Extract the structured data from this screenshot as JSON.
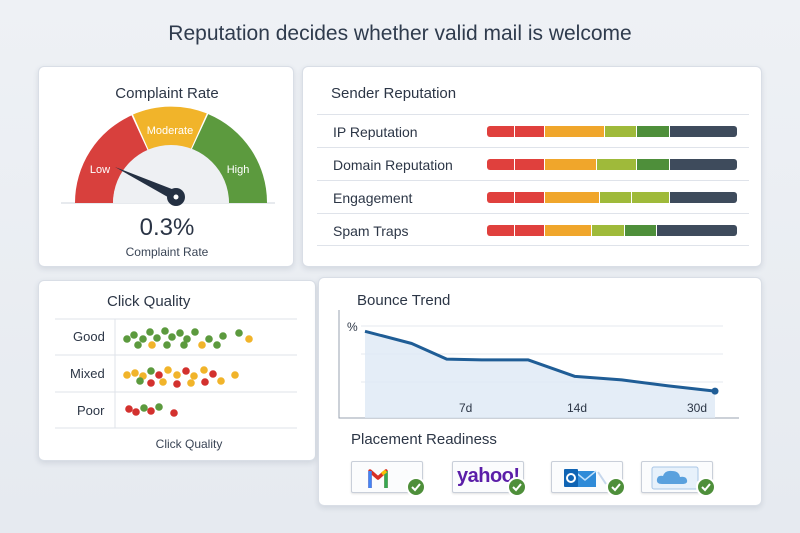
{
  "page": {
    "title": "Reputation decides whether valid mail is welcome"
  },
  "complaint": {
    "title": "Complaint Rate",
    "value": "0.3%",
    "caption": "Complaint Rate",
    "zones": [
      "Low",
      "Moderate",
      "High"
    ],
    "zone_colors": [
      "#d8403d",
      "#f1b42a",
      "#5c9a3e"
    ]
  },
  "reputation": {
    "title": "Sender Reputation",
    "rows": [
      {
        "label": "IP Reputation",
        "segments": [
          {
            "color": "#e0403d",
            "share": 0.11
          },
          {
            "color": "#e0403d",
            "share": 0.12
          },
          {
            "color": "#f0a62b",
            "share": 0.24
          },
          {
            "color": "#9fba3a",
            "share": 0.13
          },
          {
            "color": "#4e8f3a",
            "share": 0.13
          },
          {
            "color": "#3e4b5c",
            "share": 0.27
          }
        ]
      },
      {
        "label": "Domain Reputation",
        "segments": [
          {
            "color": "#e0403d",
            "share": 0.11
          },
          {
            "color": "#e0403d",
            "share": 0.12
          },
          {
            "color": "#f0a62b",
            "share": 0.21
          },
          {
            "color": "#9fba3a",
            "share": 0.16
          },
          {
            "color": "#4e8f3a",
            "share": 0.13
          },
          {
            "color": "#3e4b5c",
            "share": 0.27
          }
        ]
      },
      {
        "label": "Engagement",
        "segments": [
          {
            "color": "#e0403d",
            "share": 0.11
          },
          {
            "color": "#e0403d",
            "share": 0.12
          },
          {
            "color": "#f0a62b",
            "share": 0.22
          },
          {
            "color": "#9fba3a",
            "share": 0.13
          },
          {
            "color": "#9fba3a",
            "share": 0.15
          },
          {
            "color": "#3e4b5c",
            "share": 0.27
          }
        ]
      },
      {
        "label": "Spam Traps",
        "segments": [
          {
            "color": "#e0403d",
            "share": 0.11
          },
          {
            "color": "#e0403d",
            "share": 0.12
          },
          {
            "color": "#f0a62b",
            "share": 0.19
          },
          {
            "color": "#9fba3a",
            "share": 0.13
          },
          {
            "color": "#4e8f3a",
            "share": 0.13
          },
          {
            "color": "#3e4b5c",
            "share": 0.32
          }
        ]
      }
    ]
  },
  "click_quality": {
    "title": "Click Quality",
    "rows": [
      "Good",
      "Mixed",
      "Poor"
    ],
    "caption": "Click Quality",
    "colors": {
      "good": "#5c9a3e",
      "mixed": "#f1b42a",
      "poor": "#d3312e"
    }
  },
  "bounce": {
    "title": "Bounce Trend",
    "y_unit": "%",
    "x_ticks": [
      "7d",
      "14d",
      "30d"
    ],
    "line_color": "#1f5d96"
  },
  "chart_data": {
    "type": "line",
    "title": "Bounce Trend",
    "ylabel": "%",
    "x_ticks": [
      "7d",
      "14d",
      "30d"
    ],
    "x": [
      0,
      4,
      7,
      10,
      14,
      18,
      22,
      26,
      30
    ],
    "y": [
      1.0,
      0.86,
      0.68,
      0.67,
      0.67,
      0.48,
      0.44,
      0.37,
      0.31
    ],
    "ylim": [
      0,
      1.2
    ],
    "grid": true
  },
  "placement": {
    "title": "Placement Readiness",
    "providers": [
      {
        "name": "gmail-logo",
        "status": "ready"
      },
      {
        "name": "yahoo",
        "logo_text": "yahoo!",
        "status": "ready"
      },
      {
        "name": "outlook-logo",
        "status": "ready"
      },
      {
        "name": "icloud-logo",
        "status": "ready"
      }
    ]
  }
}
